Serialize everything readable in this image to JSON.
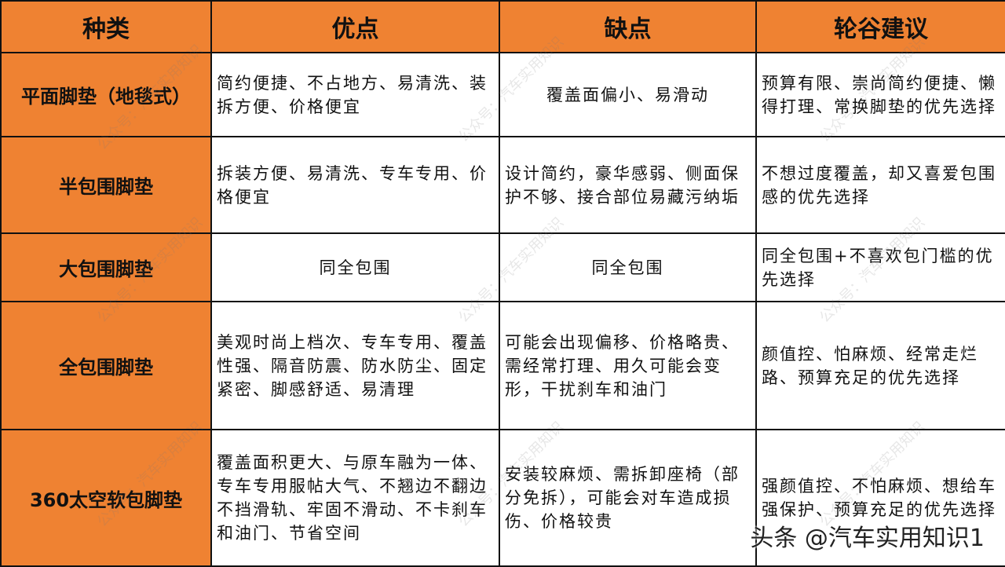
{
  "headers": [
    "种类",
    "优点",
    "缺点",
    "轮谷建议"
  ],
  "rows": [
    {
      "kind": "平面脚垫（地毯式）",
      "pros": "简约便捷、不占地方、易清洗、装拆方便、价格便宜",
      "cons": "覆盖面偏小、易滑动",
      "advice": "预算有限、崇尚简约便捷、懒得打理、常换脚垫的优先选择"
    },
    {
      "kind": "半包围脚垫",
      "pros": "拆装方便、易清洗、专车专用、价格便宜",
      "cons": "设计简约，豪华感弱、侧面保护不够、接合部位易藏污纳垢",
      "advice": "不想过度覆盖，却又喜爱包围感的优先选择"
    },
    {
      "kind": "大包围脚垫",
      "pros": "同全包围",
      "cons": "同全包围",
      "advice": "同全包围+不喜欢包门槛的优先选择"
    },
    {
      "kind": "全包围脚垫",
      "pros": "美观时尚上档次、专车专用、覆盖性强、隔音防震、防水防尘、固定紧密、脚感舒适、易清理",
      "cons": "可能会出现偏移、价格略贵、需经常打理、用久可能会变形，干扰刹车和油门",
      "advice": "颜值控、怕麻烦、经常走烂路、预算充足的优先选择"
    },
    {
      "kind": "360太空软包脚垫",
      "pros": "覆盖面积更大、与原车融为一体、专车专用服帖大气、不翘边不翻边不挡滑轨、牢固不滑动、不卡刹车和油门、节省空间",
      "cons": "安装较麻烦、需拆卸座椅（部分免拆），可能会对车造成损伤、价格较贵",
      "advice": "强颜值控、不怕麻烦、想给车强保护、预算充足的优先选择"
    }
  ],
  "watermark": "公众号：汽车实用知识",
  "signature": "头条 @汽车实用知识1",
  "colors": {
    "header_bg": "#ef8232",
    "border": "#111111"
  }
}
